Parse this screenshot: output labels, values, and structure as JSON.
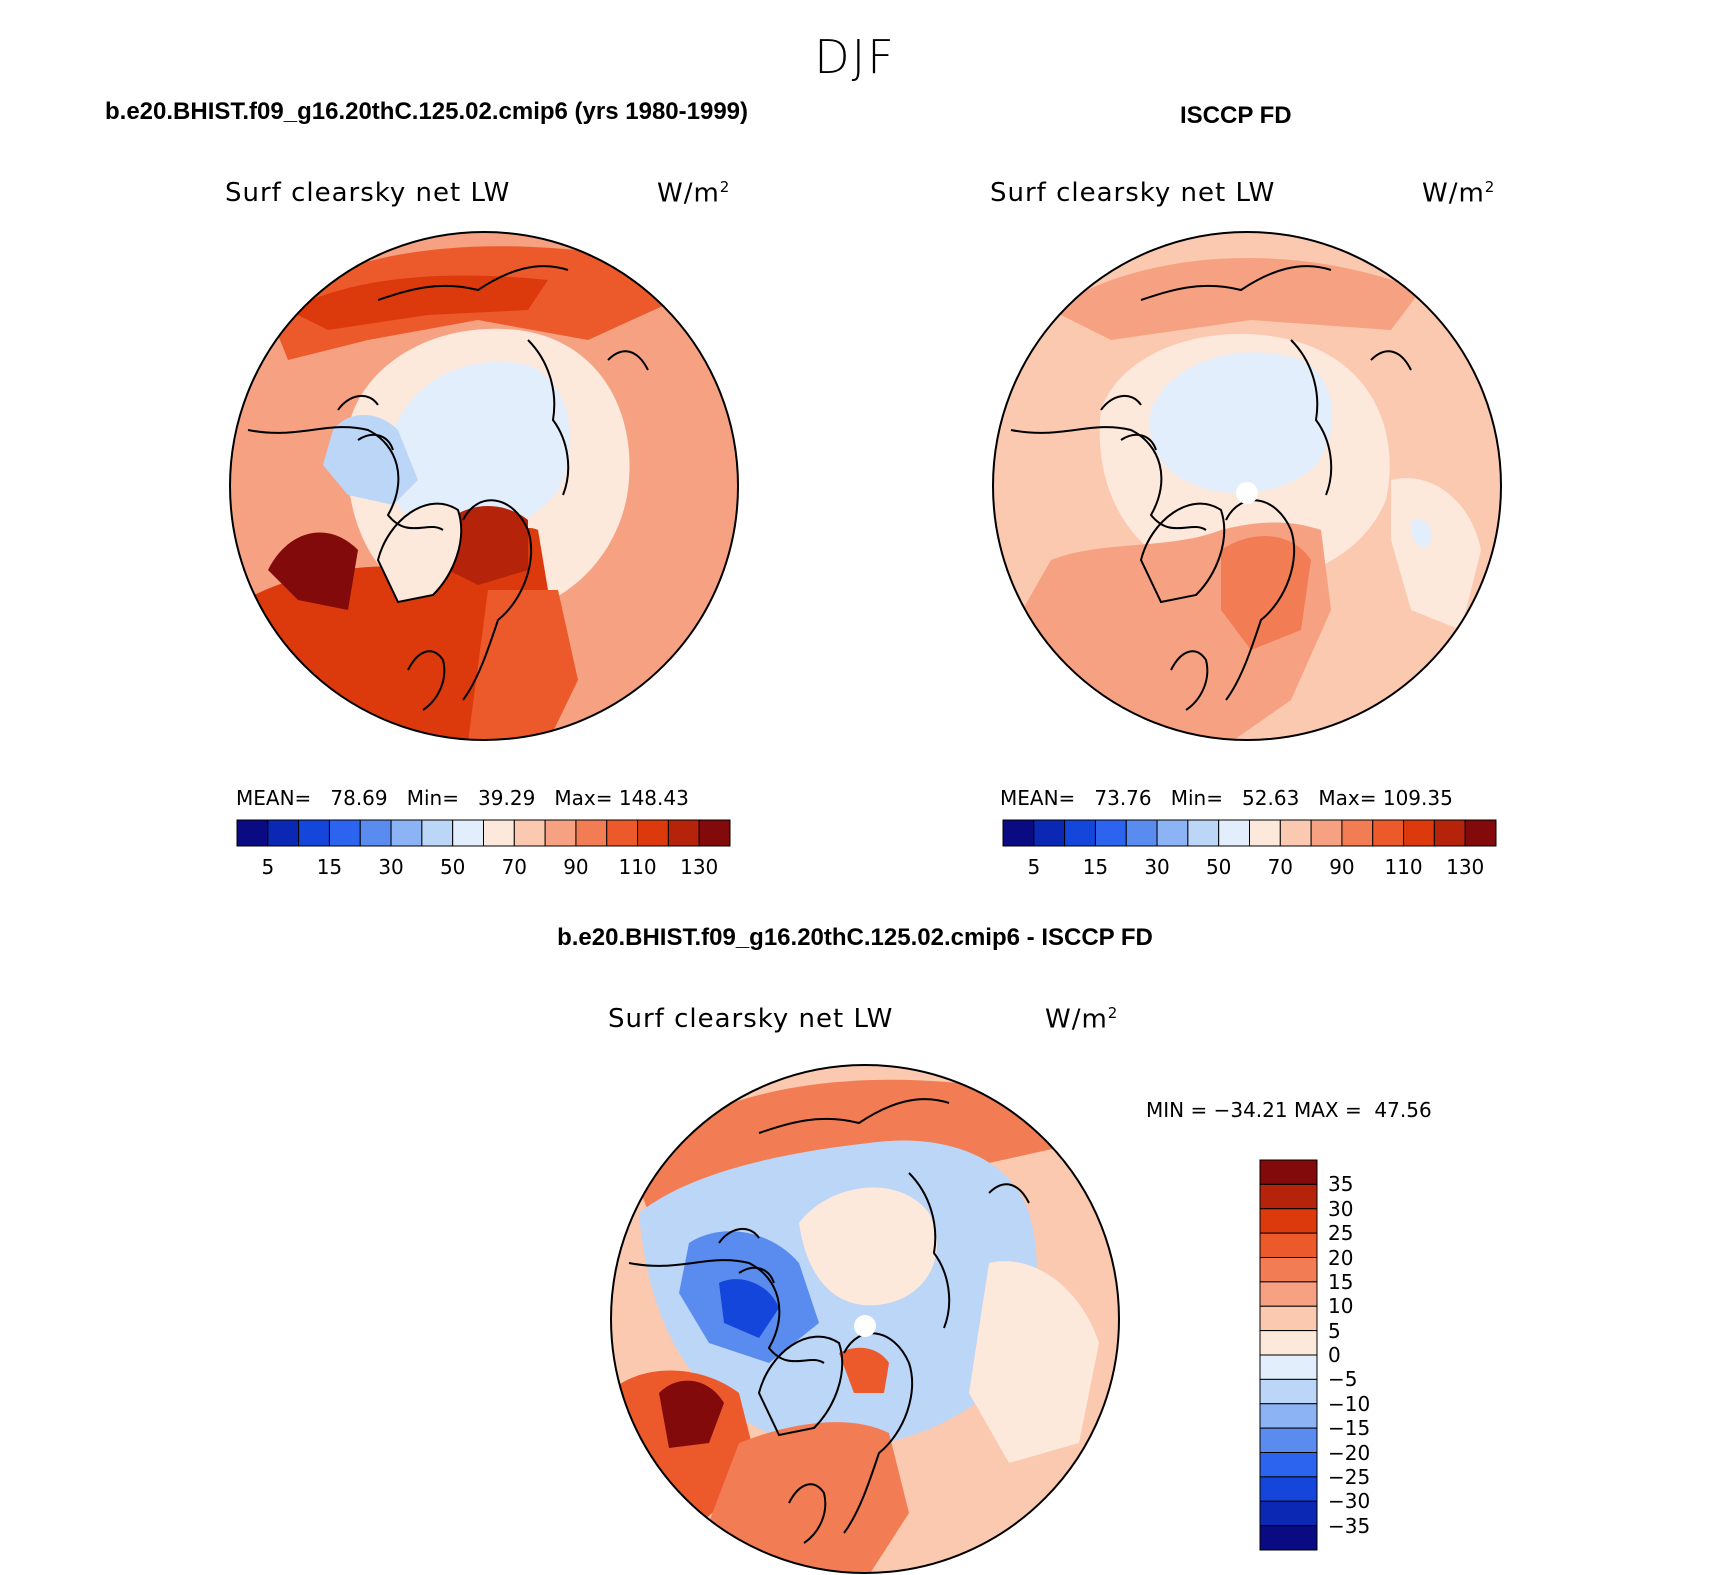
{
  "season": "DJF",
  "panels": {
    "model": {
      "title": "b.e20.BHIST.f09_g16.20thC.125.02.cmip6 (yrs 1980-1999)",
      "variable": "Surf clearsky net LW",
      "units": "W/m",
      "units_exp": "2",
      "mean_label": "MEAN=",
      "mean": "78.69",
      "min_label": "Min=",
      "min": "39.29",
      "max_label": "Max=",
      "max": "148.43"
    },
    "obs": {
      "title": "ISCCP FD",
      "variable": "Surf clearsky net LW",
      "units": "W/m",
      "units_exp": "2",
      "mean_label": "MEAN=",
      "mean": "73.76",
      "min_label": "Min=",
      "min": "52.63",
      "max_label": "Max=",
      "max": "109.35"
    },
    "diff": {
      "title": "b.e20.BHIST.f09_g16.20thC.125.02.cmip6 - ISCCP FD",
      "variable": "Surf clearsky net LW",
      "units": "W/m",
      "units_exp": "2",
      "minmax_text": "MIN = −34.21 MAX =  47.56"
    }
  },
  "colorbars": {
    "absolute": {
      "colors": [
        "#0a0a82",
        "#0a28b4",
        "#1446dc",
        "#2c64f0",
        "#5a8cf0",
        "#8cb4f5",
        "#bcd6f8",
        "#e2eefb",
        "#fde8dc",
        "#fbc8b0",
        "#f6a282",
        "#f27c54",
        "#ec5a2c",
        "#dc3a0c",
        "#b4230a",
        "#820a0a"
      ],
      "labels": [
        "5",
        "15",
        "30",
        "50",
        "70",
        "90",
        "110",
        "130"
      ]
    },
    "difference": {
      "colors": [
        "#0a0a82",
        "#0a28b4",
        "#1446dc",
        "#2c64f0",
        "#5a8cf0",
        "#8cb4f5",
        "#bcd6f8",
        "#e2eefb",
        "#fde8dc",
        "#fbc8b0",
        "#f6a282",
        "#f27c54",
        "#ec5a2c",
        "#dc3a0c",
        "#b4230a",
        "#820a0a"
      ],
      "labels": [
        "35",
        "30",
        "25",
        "20",
        "15",
        "10",
        "5",
        "0",
        "−5",
        "−10",
        "−15",
        "−20",
        "−25",
        "−30",
        "−35"
      ]
    }
  }
}
